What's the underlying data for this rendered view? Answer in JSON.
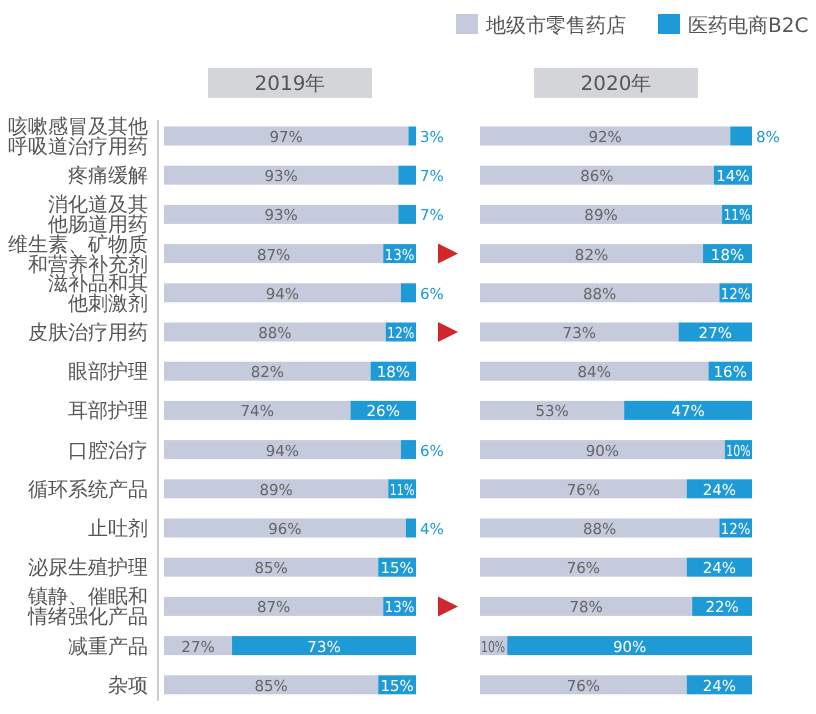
{
  "chart_data": [
    {
      "type": "bar",
      "orientation": "horizontal",
      "stacked": true,
      "title": "2019年",
      "categories": [
        "咳嗽感冒及其他呼吸道治疗用药",
        "疼痛缓解",
        "消化道及其他肠道用药",
        "维生素、矿物质和营养补充剂",
        "滋补品和其他刺激剂",
        "皮肤治疗用药",
        "眼部护理",
        "耳部护理",
        "口腔治疗",
        "循环系统产品",
        "止吐剂",
        "泌尿生殖护理",
        "镇静、催眠和情绪强化产品",
        "减重产品",
        "杂项"
      ],
      "series": [
        {
          "color": "#c5cadc",
          "values": [
            97,
            93,
            93,
            87,
            94,
            88,
            82,
            74,
            94,
            89,
            96,
            85,
            87,
            27,
            85
          ],
          "value_labels": [
            "97%",
            "93%",
            "93%",
            "87%",
            "94%",
            "88%",
            "82%",
            "74%",
            "94%",
            "89%",
            "96%",
            "85%",
            "87%",
            "27%",
            "85%"
          ]
        },
        {
          "color": "#1e9ad6",
          "values": [
            3,
            7,
            7,
            13,
            6,
            12,
            18,
            26,
            6,
            11,
            4,
            15,
            13,
            73,
            15
          ],
          "value_labels": [
            "3%",
            "7%",
            "7%",
            "13%",
            "6%",
            "12%",
            "18%",
            "26%",
            "6%",
            "11%",
            "4%",
            "15%",
            "13%",
            "73%",
            "15%"
          ]
        }
      ]
    },
    {
      "type": "bar",
      "orientation": "horizontal",
      "stacked": true,
      "title": "2020年",
      "legend": "top right",
      "tick_labels": false,
      "categories": [
        "咳嗽感冒及其他呼吸道治疗用药",
        "疼痛缓解",
        "消化道及其他肠道用药",
        "维生素、矿物质和营养补充剂",
        "滋补品和其他刺激剂",
        "皮肤治疗用药",
        "眼部护理",
        "耳部护理",
        "口腔治疗",
        "循环系统产品",
        "止吐剂",
        "泌尿生殖护理",
        "镇静、催眠和情绪强化产品",
        "减重产品",
        "杂项"
      ],
      "series": [
        {
          "name": "地级市零售药店",
          "color": "#c5cadc",
          "values": [
            92,
            86,
            89,
            82,
            88,
            73,
            84,
            53,
            90,
            76,
            88,
            76,
            78,
            10,
            76
          ],
          "value_labels": [
            "92%",
            "86%",
            "89%",
            "82%",
            "88%",
            "73%",
            "84%",
            "53%",
            "90%",
            "76%",
            "88%",
            "76%",
            "78%",
            "10%",
            "76%"
          ]
        },
        {
          "name": "医药电商B2C",
          "color": "#1e9ad6",
          "values": [
            8,
            14,
            11,
            18,
            12,
            27,
            16,
            47,
            10,
            24,
            12,
            24,
            22,
            90,
            24
          ],
          "value_labels": [
            "8%",
            "14%",
            "11%",
            "18%",
            "12%",
            "27%",
            "16%",
            "47%",
            "10%",
            "24%",
            "12%",
            "24%",
            "22%",
            "90%",
            "24%"
          ]
        }
      ]
    }
  ]
}
